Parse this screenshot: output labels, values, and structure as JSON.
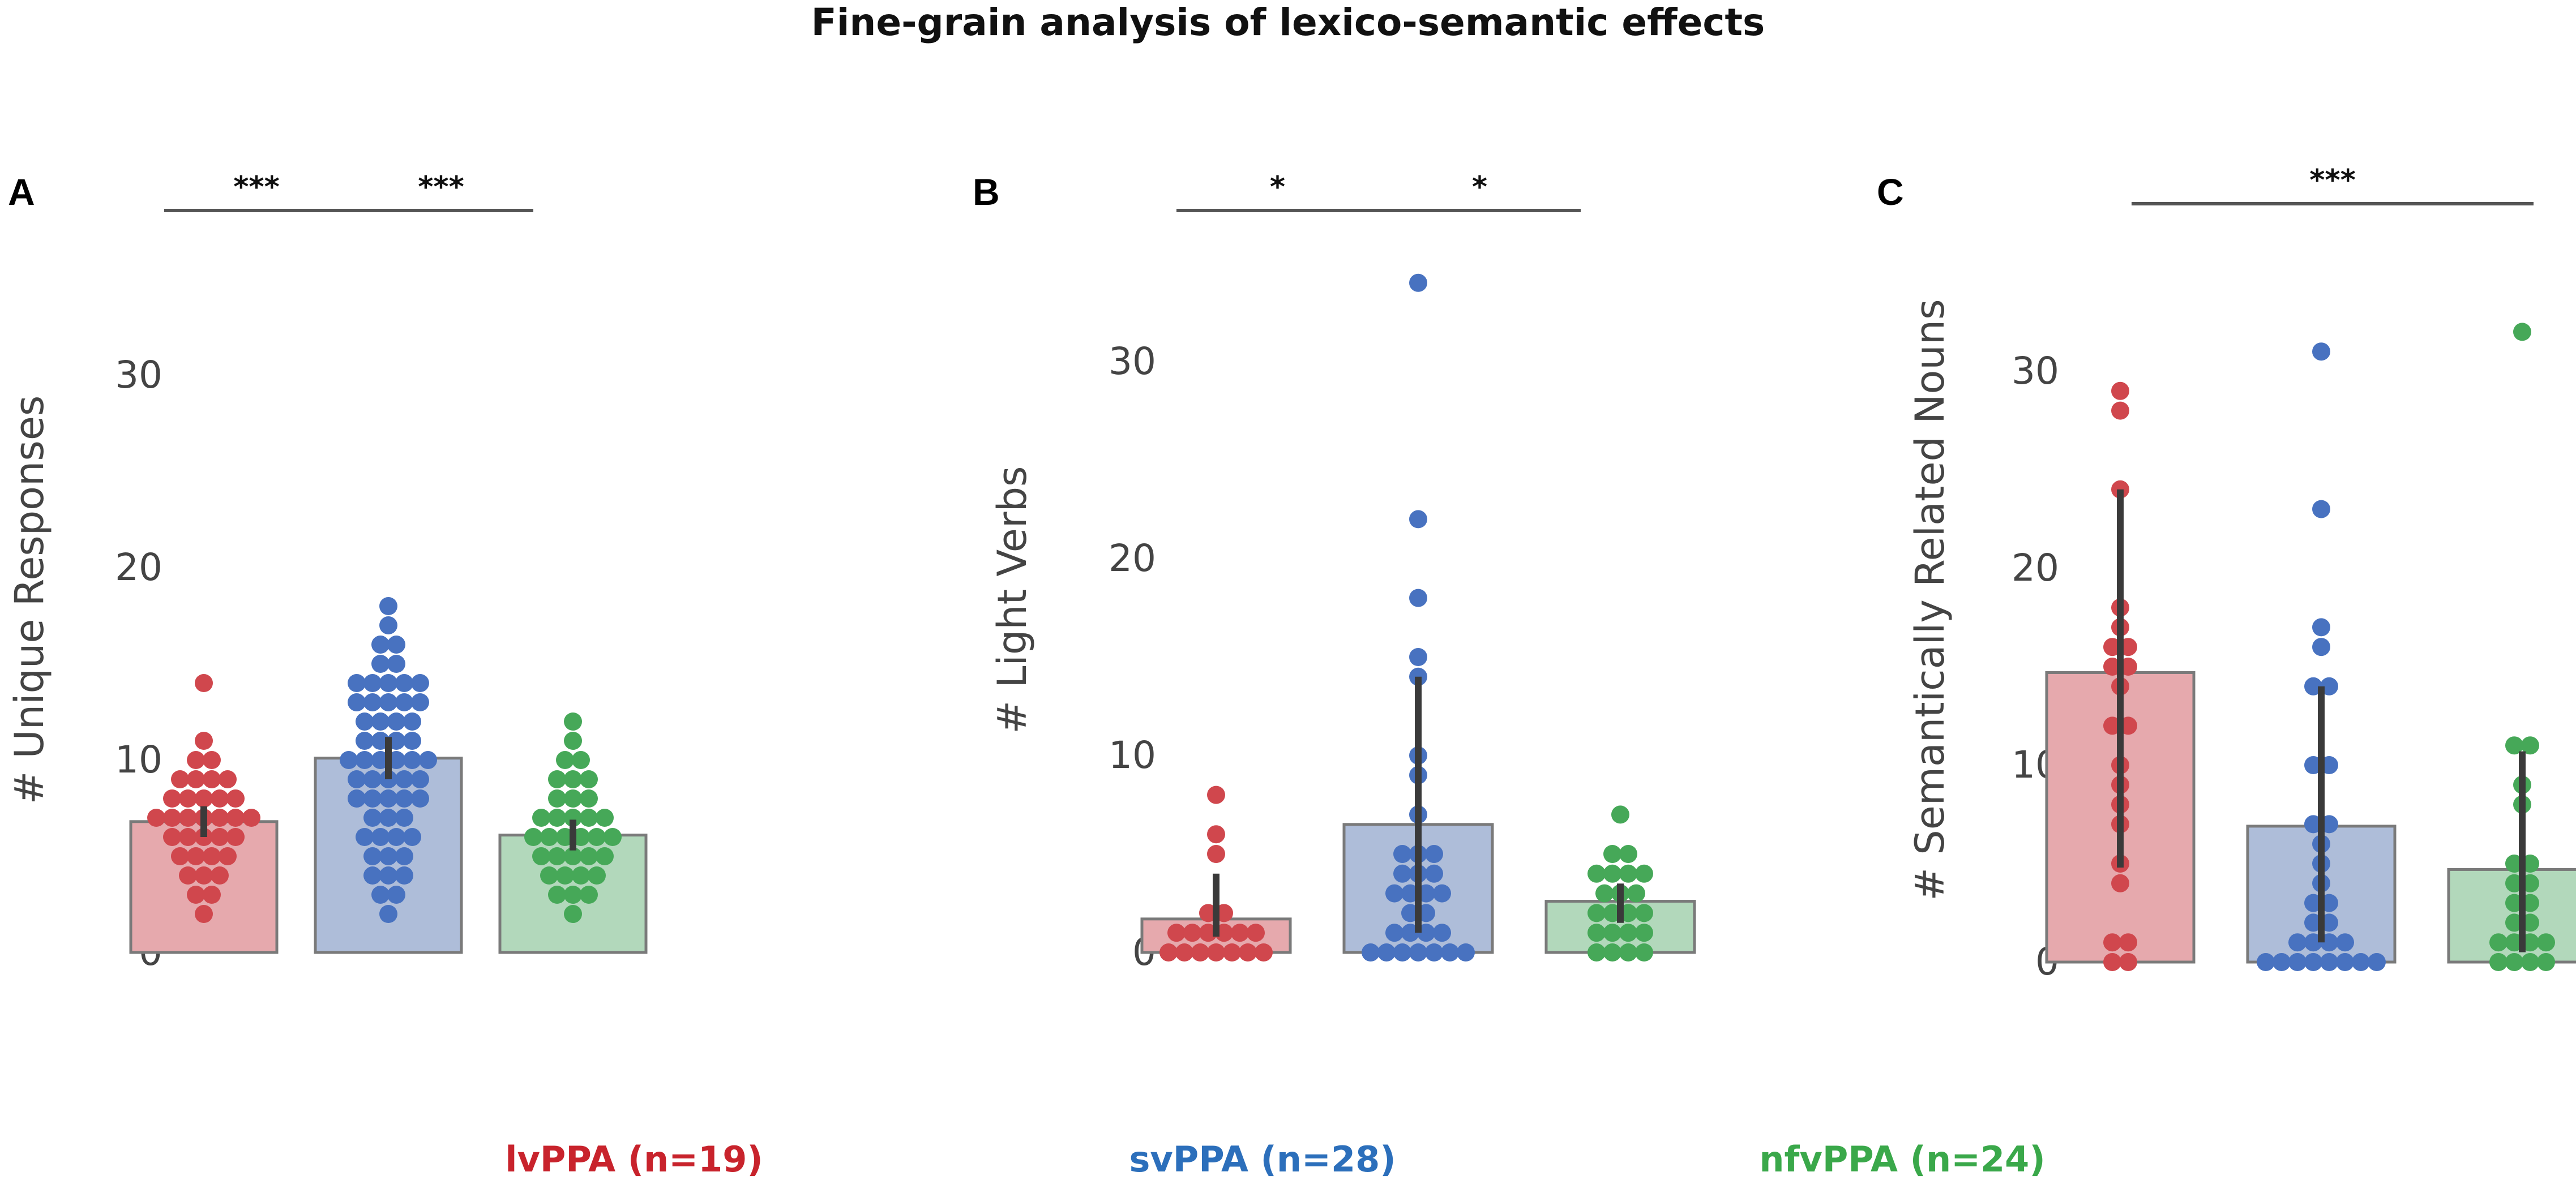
{
  "figure": {
    "title": "Fine-grain analysis of lexico-semantic effects"
  },
  "colors": {
    "lvPPA": "#d0474d",
    "svPPA": "#4872c0",
    "nfvPPA": "#46a858",
    "lvPPA_bar": "#e6a9ad",
    "svPPA_bar": "#aebdd9",
    "nfvPPA_bar": "#b2d8bb",
    "legend_lvPPA": "#c8232c",
    "legend_svPPA": "#2c6fbb",
    "legend_nfvPPA": "#3aa84a",
    "error_bar": "#3a3a3a",
    "sig_line": "#555555"
  },
  "legend": [
    {
      "label": "lvPPA (n=19)",
      "group": "lvPPA"
    },
    {
      "label": "svPPA (n=28)",
      "group": "svPPA"
    },
    {
      "label": "nfvPPA (n=24)",
      "group": "nfvPPA"
    }
  ],
  "chart_data": [
    {
      "panel": "A",
      "type": "bar",
      "ylabel": "# Unique Responses",
      "xlabel": "",
      "ylim": [
        0,
        33
      ],
      "yticks": [
        "0",
        "10",
        "20",
        "30"
      ],
      "categories": [
        "lvPPA",
        "svPPA",
        "nfvPPA"
      ],
      "values": [
        6.8,
        10.1,
        6.1
      ],
      "error": [
        [
          6,
          7.6
        ],
        [
          9,
          11.2
        ],
        [
          5.3,
          6.9
        ]
      ],
      "points": [
        [
          2,
          3,
          3,
          4,
          4,
          4,
          5,
          5,
          5,
          5,
          6,
          6,
          6,
          6,
          6,
          7,
          7,
          7,
          7,
          7,
          7,
          7,
          8,
          8,
          8,
          8,
          8,
          9,
          9,
          9,
          9,
          10,
          10,
          11,
          14
        ],
        [
          2,
          3,
          3,
          4,
          4,
          4,
          5,
          5,
          5,
          6,
          6,
          6,
          6,
          7,
          7,
          7,
          8,
          8,
          8,
          8,
          8,
          9,
          9,
          9,
          9,
          9,
          10,
          10,
          10,
          10,
          10,
          10,
          11,
          11,
          11,
          11,
          12,
          12,
          12,
          12,
          13,
          13,
          13,
          13,
          13,
          14,
          14,
          14,
          14,
          14,
          15,
          15,
          16,
          16,
          17,
          18
        ],
        [
          2,
          3,
          3,
          3,
          4,
          4,
          4,
          4,
          5,
          5,
          5,
          5,
          5,
          6,
          6,
          6,
          6,
          6,
          6,
          7,
          7,
          7,
          7,
          7,
          8,
          8,
          8,
          9,
          9,
          9,
          10,
          10,
          11,
          12
        ]
      ],
      "significance": [
        {
          "from": 0,
          "to": 1,
          "label": "***"
        },
        {
          "from": 1,
          "to": 2,
          "label": "***"
        }
      ]
    },
    {
      "panel": "B",
      "type": "bar",
      "ylabel": "# Light Verbs",
      "xlabel": "",
      "ylim": [
        0,
        35
      ],
      "yticks": [
        "0",
        "10",
        "20",
        "30"
      ],
      "categories": [
        "lvPPA",
        "svPPA",
        "nfvPPA"
      ],
      "values": [
        1.7,
        6.5,
        2.6
      ],
      "error": [
        [
          0.8,
          4
        ],
        [
          1,
          14
        ],
        [
          1.5,
          3.5
        ]
      ],
      "points": [
        [
          0,
          0,
          0,
          0,
          0,
          0,
          0,
          1,
          1,
          1,
          1,
          1,
          1,
          2,
          2,
          5,
          6,
          8
        ],
        [
          0,
          0,
          0,
          0,
          0,
          0,
          0,
          1,
          1,
          1,
          1,
          2,
          2,
          3,
          3,
          3,
          3,
          4,
          4,
          4,
          5,
          5,
          5,
          7,
          9,
          10,
          14,
          15,
          18,
          22,
          34
        ],
        [
          0,
          0,
          0,
          0,
          1,
          1,
          1,
          1,
          2,
          2,
          2,
          2,
          3,
          3,
          3,
          4,
          4,
          4,
          4,
          5,
          5,
          7
        ]
      ],
      "significance": [
        {
          "from": 0,
          "to": 1,
          "label": "*"
        },
        {
          "from": 1,
          "to": 2,
          "label": "*"
        }
      ]
    },
    {
      "panel": "C",
      "type": "bar",
      "ylabel": "# Semantically Related Nouns",
      "xlabel": "",
      "ylim": [
        0,
        34
      ],
      "yticks": [
        "0",
        "10",
        "20",
        "30"
      ],
      "categories": [
        "lvPPA",
        "svPPA",
        "nfvPPA"
      ],
      "values": [
        14.7,
        6.9,
        4.7
      ],
      "error": [
        [
          4.8,
          24
        ],
        [
          1,
          14
        ],
        [
          0.5,
          10.7
        ]
      ],
      "points": [
        [
          0,
          0,
          1,
          1,
          4,
          5,
          7,
          8,
          9,
          10,
          12,
          12,
          14,
          15,
          15,
          16,
          16,
          17,
          18,
          24,
          28,
          29
        ],
        [
          0,
          0,
          0,
          0,
          0,
          0,
          0,
          0,
          1,
          1,
          1,
          1,
          2,
          2,
          3,
          3,
          4,
          5,
          6,
          7,
          7,
          10,
          10,
          14,
          14,
          16,
          17,
          23,
          31
        ],
        [
          0,
          0,
          0,
          0,
          1,
          1,
          1,
          1,
          2,
          2,
          3,
          3,
          4,
          4,
          5,
          5,
          8,
          9,
          11,
          11,
          32
        ]
      ],
      "significance": [
        {
          "from": 0,
          "to": 2,
          "label": "***"
        }
      ]
    }
  ]
}
